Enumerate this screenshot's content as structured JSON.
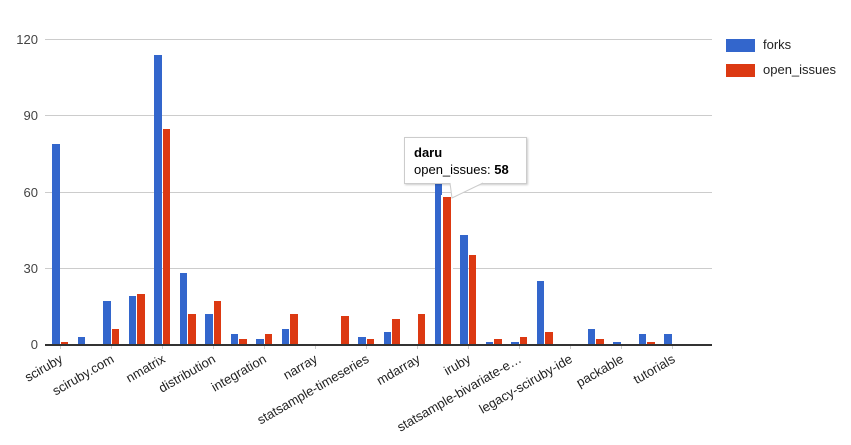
{
  "chart_data": {
    "type": "bar",
    "title": "",
    "categories": [
      "sciruby",
      "",
      "sciruby.com",
      "",
      "nmatrix",
      "",
      "distribution",
      "",
      "integration",
      "",
      "narray",
      "",
      "statsample-timeseries",
      "",
      "mdarray",
      "daru",
      "iruby",
      "",
      "statsample-bivariate-e…",
      "",
      "legacy-sciruby-ide",
      "",
      "packable",
      "",
      "tutorials"
    ],
    "series": [
      {
        "name": "forks",
        "color": "#3366CC",
        "values": [
          79,
          3,
          17,
          19,
          114,
          28,
          12,
          4,
          2,
          6,
          0,
          0,
          3,
          5,
          0,
          63,
          43,
          1,
          1,
          25,
          0,
          6,
          1,
          4,
          4
        ]
      },
      {
        "name": "open_issues",
        "color": "#DC3912",
        "values": [
          1,
          0,
          6,
          20,
          85,
          12,
          17,
          2,
          4,
          12,
          0,
          11,
          2,
          10,
          12,
          58,
          35,
          2,
          3,
          5,
          0,
          2,
          0,
          1,
          0
        ]
      }
    ],
    "y_axis": {
      "ticks": [
        0,
        30,
        60,
        90,
        120
      ],
      "range": [
        0,
        130
      ]
    },
    "x_axis": {
      "labels_shown": "every-other",
      "label_angle_deg": 30
    },
    "grid": true,
    "legend_position": "top-right"
  },
  "legend": {
    "items": [
      {
        "label": "forks",
        "color": "#3366CC"
      },
      {
        "label": "open_issues",
        "color": "#DC3912"
      }
    ]
  },
  "tooltip": {
    "title": "daru",
    "series_label": "open_issues:",
    "value": "58",
    "category_index": 15,
    "series": "open_issues"
  }
}
